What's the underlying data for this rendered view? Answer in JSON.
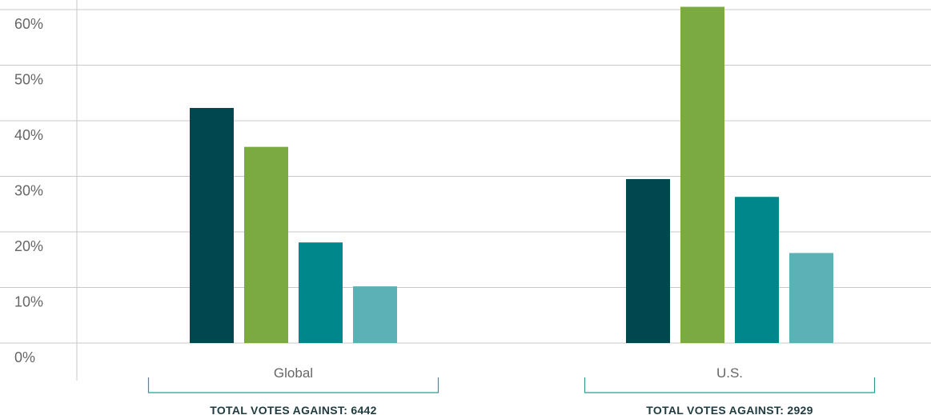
{
  "chart_data": {
    "type": "bar",
    "categories": [
      "Global",
      "U.S."
    ],
    "series": [
      {
        "values": [
          42.3,
          29.5
        ],
        "color": "#00474f"
      },
      {
        "values": [
          35.3,
          60.5
        ],
        "color": "#7aaa41"
      },
      {
        "values": [
          18.1,
          26.3
        ],
        "color": "#00878c"
      },
      {
        "values": [
          10.2,
          16.2
        ],
        "color": "#5bb1b5"
      }
    ],
    "ylim": [
      0,
      60
    ],
    "yticks": [
      "0%",
      "10%",
      "20%",
      "30%",
      "40%",
      "50%",
      "60%"
    ],
    "ytick_values": [
      0,
      10,
      20,
      30,
      40,
      50,
      60
    ],
    "grid": true,
    "totals": [
      "TOTAL VOTES AGAINST: 6442",
      "TOTAL VOTES AGAINST: 2929"
    ],
    "colors": {
      "grid": "#c8c8c8",
      "bracket": "#2a9a93",
      "text": "#666666",
      "total_text": "#1f3b40"
    }
  }
}
